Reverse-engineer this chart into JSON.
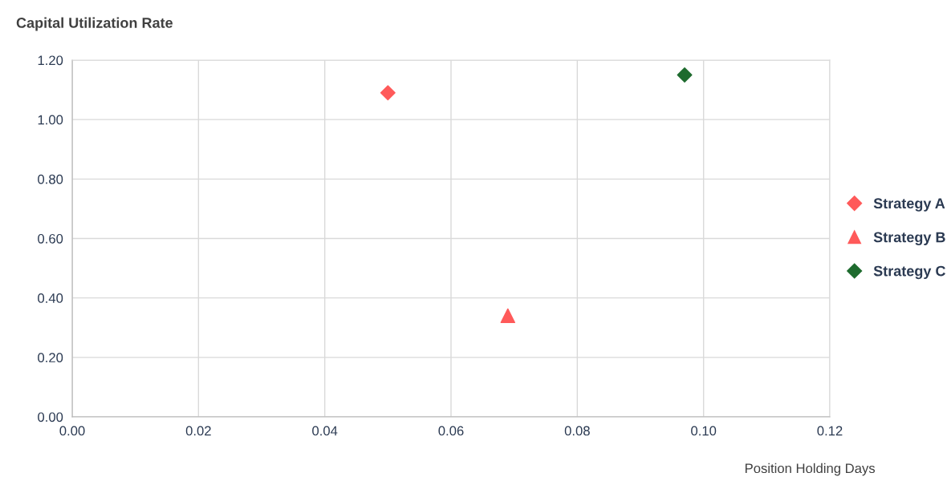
{
  "chart_data": {
    "type": "scatter",
    "title": "Capital Utilization Rate",
    "xlabel": "Position Holding Days",
    "series": [
      {
        "name": "Strategy A",
        "color": "#ff5a5a",
        "marker": "diamond",
        "x": [
          0.05
        ],
        "values": [
          1.09
        ]
      },
      {
        "name": "Strategy B",
        "color": "#ff5a5a",
        "marker": "triangle",
        "x": [
          0.069
        ],
        "values": [
          0.34
        ]
      },
      {
        "name": "Strategy C",
        "color": "#1e6b2e",
        "marker": "diamond",
        "x": [
          0.097
        ],
        "values": [
          1.15
        ]
      }
    ],
    "xlim": [
      0,
      0.12
    ],
    "xticks": [
      {
        "value": 0,
        "label": "0.00"
      },
      {
        "value": 0.02,
        "label": "0.02"
      },
      {
        "value": 0.04,
        "label": "0.04"
      },
      {
        "value": 0.06,
        "label": "0.06"
      },
      {
        "value": 0.08,
        "label": "0.08"
      },
      {
        "value": 0.1,
        "label": "0.10"
      },
      {
        "value": 0.12,
        "label": "0.12"
      }
    ],
    "ylim": [
      0,
      1.2
    ],
    "yticks": [
      {
        "value": 0,
        "label": "0.00"
      },
      {
        "value": 0.2,
        "label": "0.20"
      },
      {
        "value": 0.4,
        "label": "0.40"
      },
      {
        "value": 0.6,
        "label": "0.60"
      },
      {
        "value": 0.8,
        "label": "0.80"
      },
      {
        "value": 1.0,
        "label": "1.00"
      },
      {
        "value": 1.2,
        "label": "1.20"
      }
    ],
    "grid": true,
    "legend": "right"
  }
}
